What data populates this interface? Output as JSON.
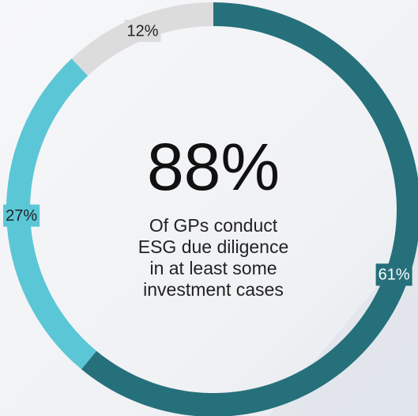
{
  "chart_data": {
    "type": "donut",
    "categories": [
      null,
      null,
      null
    ],
    "values": [
      61,
      27,
      12
    ],
    "value_labels": [
      "61%",
      "27%",
      "12%"
    ],
    "colors": [
      "#25707b",
      "#5bc6d6",
      "#dcdcdc"
    ],
    "center_label": "88%",
    "center_text": [
      "Of GPs conduct",
      "ESG due diligence",
      "in at least some",
      "investment cases"
    ]
  }
}
